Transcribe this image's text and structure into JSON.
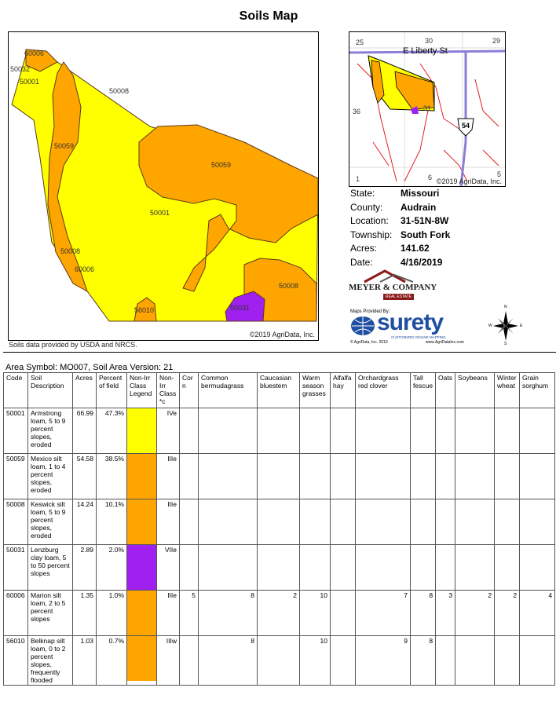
{
  "title": "Soils Map",
  "map": {
    "labels": [
      "60006",
      "50032",
      "50001",
      "50008",
      "50059",
      "50059",
      "50001",
      "50008",
      "60006",
      "50008",
      "50031",
      "56010"
    ],
    "credit": "©2019 AgriData, Inc.",
    "source_note": "Soils data provided by USDA and NRCS."
  },
  "inset": {
    "road_name": "E Liberty St",
    "highway": "54",
    "section_numbers": [
      "25",
      "30",
      "29",
      "36",
      "31",
      "1",
      "6",
      "5"
    ],
    "credit": "©2019 AgriData, Inc."
  },
  "info": [
    {
      "label": "State:",
      "value": "Missouri"
    },
    {
      "label": "County:",
      "value": "Audrain"
    },
    {
      "label": "Location:",
      "value": "31-51N-8W"
    },
    {
      "label": "Township:",
      "value": "South Fork"
    },
    {
      "label": "Acres:",
      "value": "141.62"
    },
    {
      "label": "Date:",
      "value": "4/16/2019"
    }
  ],
  "logos": {
    "meyer": "MEYER & COMPANY",
    "meyer_sub": "REAL ESTATE",
    "maps_provided_by": "Maps Provided By:",
    "surety": "surety",
    "surety_tag": "CUSTOMIZED ONLINE MAPPING",
    "surety_copyright": "© AgriData, Inc. 2019",
    "surety_url": "www.AgriDataInc.com",
    "compass": {
      "n": "N",
      "w": "W",
      "e": "E",
      "s": "S"
    }
  },
  "area_symbol": "Area Symbol: MO007, Soil Area Version: 21",
  "table": {
    "headers": [
      "Code",
      "Soil Description",
      "Acres",
      "Percent of field",
      "Non-Irr Class Legend",
      "Non-Irr Class *c",
      "Cor n",
      "Common bermudagrass",
      "Caucasian bluestem",
      "Warm season grasses",
      "Alfalfa hay",
      "Orchardgrass red clover",
      "Tall fescue",
      "Oats",
      "Soybeans",
      "Winter wheat",
      "Grain sorghum"
    ],
    "rows": [
      {
        "code": "50001",
        "desc": "Armstrong loam, 5 to 9 percent slopes, eroded",
        "acres": "66.99",
        "pct": "47.3%",
        "color": "#ffff00",
        "cls": "IVe",
        "vals": [
          "",
          "",
          "",
          "",
          "",
          "",
          "",
          "",
          "",
          "",
          ""
        ]
      },
      {
        "code": "50059",
        "desc": "Mexico silt loam, 1 to 4 percent slopes, eroded",
        "acres": "54.58",
        "pct": "38.5%",
        "color": "#ffa500",
        "cls": "IIIe",
        "vals": [
          "",
          "",
          "",
          "",
          "",
          "",
          "",
          "",
          "",
          "",
          ""
        ]
      },
      {
        "code": "50008",
        "desc": "Keswick silt loam, 5 to 9 percent slopes, eroded",
        "acres": "14.24",
        "pct": "10.1%",
        "color": "#ffa500",
        "cls": "IIIe",
        "vals": [
          "",
          "",
          "",
          "",
          "",
          "",
          "",
          "",
          "",
          "",
          ""
        ]
      },
      {
        "code": "50031",
        "desc": "Lenzburg clay loam, 5 to 50 percent slopes",
        "acres": "2.89",
        "pct": "2.0%",
        "color": "#a020f0",
        "cls": "VIIe",
        "vals": [
          "",
          "",
          "",
          "",
          "",
          "",
          "",
          "",
          "",
          "",
          ""
        ]
      },
      {
        "code": "60006",
        "desc": "Marion silt loam, 2 to 5 percent slopes",
        "acres": "1.35",
        "pct": "1.0%",
        "color": "#ffa500",
        "cls": "IIIe",
        "vals": [
          "5",
          "8",
          "2",
          "10",
          "",
          "7",
          "8",
          "3",
          "2",
          "2",
          "4"
        ]
      },
      {
        "code": "56010",
        "desc": "Belknap silt loam, 0 to 2 percent slopes, frequently flooded",
        "acres": "1.03",
        "pct": "0.7%",
        "color": "#ffa500",
        "cls": "IIIw",
        "vals": [
          "",
          "8",
          "",
          "10",
          "",
          "9",
          "8",
          "",
          "",
          "",
          ""
        ]
      }
    ]
  },
  "colors": {
    "yellow": "#ffff00",
    "orange": "#ffa500",
    "purple": "#a020f0",
    "road": "#8a7fd8",
    "streams": "#e02020"
  }
}
